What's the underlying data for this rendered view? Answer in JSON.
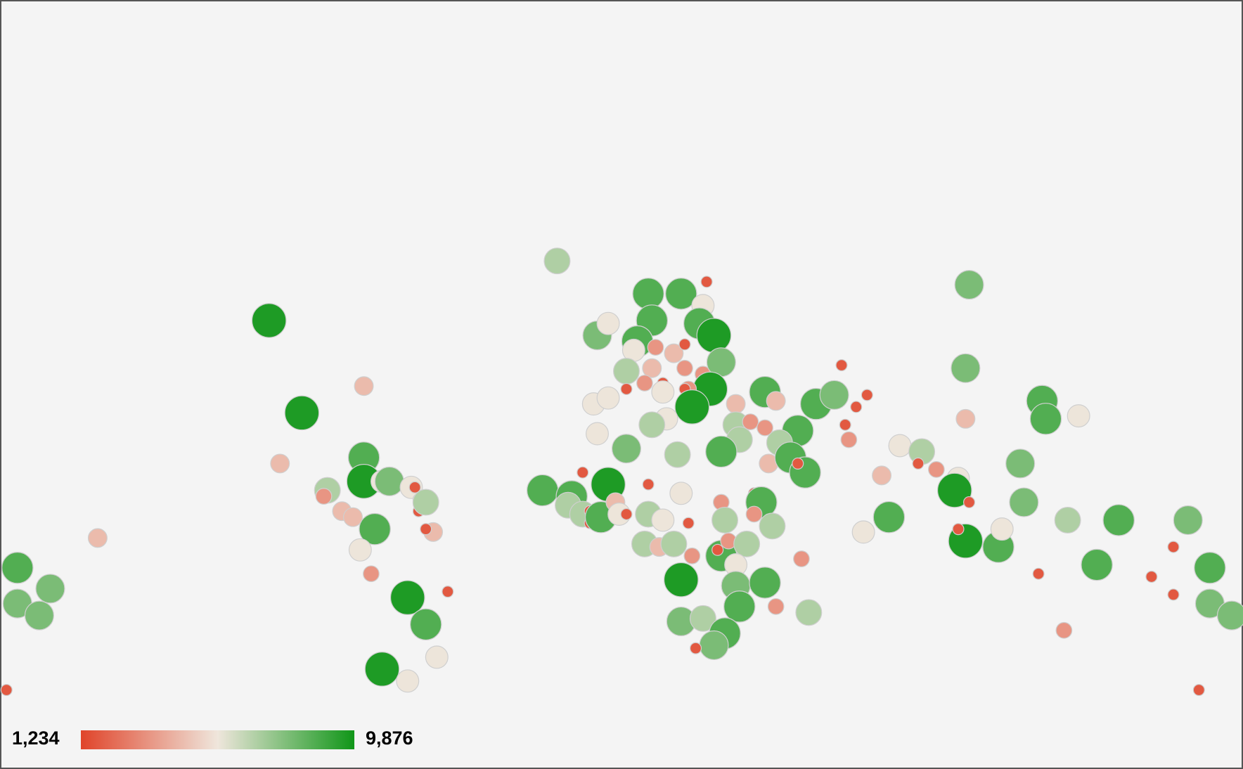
{
  "chart_data": {
    "type": "bubble-map",
    "colorAxis": {
      "colors": [
        "#e0442a",
        "#efe6dc",
        "#109618"
      ],
      "min": {
        "value": 1234,
        "label": "1,234"
      },
      "max": {
        "value": 9876,
        "label": "9,876"
      }
    },
    "lon": [
      -150,
      -150,
      -141,
      -144,
      -153,
      -128,
      -81,
      -72,
      -55,
      -78,
      -55,
      -55,
      -55,
      -50,
      -48,
      -65,
      -66,
      -61,
      -58,
      -42,
      -41,
      -40,
      -40,
      -38,
      -36,
      -38,
      -52,
      -56,
      -53,
      -32,
      -43,
      -38,
      -35,
      -50,
      -43,
      -2,
      23,
      32,
      39,
      38,
      24,
      9,
      12,
      37,
      41,
      20,
      19,
      25,
      30,
      33,
      17,
      24,
      27,
      22,
      17,
      33,
      38,
      43,
      40,
      34,
      33,
      27,
      35,
      28,
      24,
      8,
      12,
      9,
      17,
      31,
      47,
      47,
      51,
      47,
      55,
      55,
      58,
      48,
      64,
      69,
      74,
      76,
      83,
      80,
      77,
      78,
      43,
      59,
      56,
      62,
      66,
      64,
      -6,
      2,
      5,
      12,
      1,
      5,
      7,
      7,
      10,
      14,
      15,
      17,
      23,
      23,
      27,
      32,
      34,
      43,
      52,
      54,
      52,
      57,
      44,
      22,
      26,
      30,
      35,
      43,
      42,
      45,
      50,
      47,
      47,
      55,
      32,
      48,
      65,
      58,
      67,
      32,
      38,
      44,
      41,
      36,
      111,
      110,
      110,
      131,
      132,
      141,
      92,
      98,
      97,
      102,
      87,
      108,
      107,
      111,
      125,
      126,
      82,
      89,
      110,
      108,
      119,
      120,
      138,
      152,
      171,
      146,
      167,
      161,
      167,
      130,
      177,
      177,
      183,
      137,
      174
    ],
    "lat": [
      -15,
      -27,
      -22,
      -31,
      -56,
      -5,
      68,
      37,
      46,
      20,
      22,
      17,
      14,
      14,
      14,
      11,
      9,
      4,
      2,
      12,
      12,
      8,
      4,
      7,
      -3,
      -2,
      -2,
      -9,
      -17,
      -23,
      -25,
      -34,
      -45,
      -49,
      -53,
      88,
      77,
      77,
      81,
      73,
      68,
      63,
      67,
      67,
      63,
      61,
      58,
      59,
      57,
      60,
      51,
      52,
      47,
      47,
      45,
      52,
      50,
      54,
      45,
      45,
      45,
      44,
      39,
      35,
      33,
      40,
      42,
      30,
      25,
      23,
      40,
      33,
      34,
      29,
      32,
      44,
      41,
      28,
      31,
      40,
      43,
      53,
      43,
      39,
      33,
      28,
      24,
      27,
      20,
      22,
      17,
      20,
      11,
      9,
      17,
      13,
      6,
      3,
      4,
      0,
      2,
      7,
      3,
      3,
      13,
      3,
      1,
      10,
      0,
      7,
      10,
      7,
      3,
      -1,
      1,
      -7,
      -8,
      -7,
      -11,
      -11,
      -9,
      -6,
      -7,
      -14,
      -21,
      -20,
      -19,
      -28,
      -12,
      -28,
      -30,
      -33,
      -32,
      -37,
      -41,
      -42,
      80,
      52,
      35,
      41,
      35,
      36,
      26,
      24,
      20,
      18,
      16,
      15,
      11,
      7,
      20,
      7,
      -3,
      2,
      -6,
      -2,
      -8,
      -2,
      1,
      1,
      1,
      -14,
      -8,
      -18,
      -24,
      -17,
      -15,
      -27,
      -31,
      -36,
      -56
    ],
    "values": [
      8600,
      7800,
      7800,
      7800,
      1800,
      4400,
      9600,
      9600,
      4400,
      4400,
      8600,
      1800,
      9600,
      5600,
      7800,
      6800,
      3400,
      4400,
      4400,
      5600,
      1800,
      1800,
      1800,
      6800,
      4400,
      1800,
      8600,
      5600,
      3400,
      1800,
      9600,
      8600,
      5600,
      9600,
      5600,
      6800,
      8600,
      8600,
      1800,
      5600,
      8600,
      7800,
      5600,
      8600,
      9600,
      8600,
      5600,
      3400,
      4400,
      1800,
      6800,
      4400,
      1800,
      3400,
      1800,
      3400,
      3400,
      7800,
      9600,
      3400,
      1800,
      5600,
      9600,
      5600,
      6800,
      5600,
      5600,
      5600,
      7800,
      6800,
      4400,
      6800,
      3400,
      1800,
      3400,
      8600,
      4400,
      6800,
      8600,
      8600,
      7800,
      1800,
      1800,
      1800,
      1800,
      3400,
      8600,
      6800,
      4400,
      8600,
      8600,
      1800,
      8600,
      8600,
      1800,
      9600,
      6800,
      6800,
      1800,
      1800,
      8600,
      4400,
      5600,
      1800,
      1800,
      6800,
      5600,
      5600,
      1800,
      3400,
      1800,
      8600,
      3400,
      6800,
      6800,
      6800,
      4400,
      6800,
      3400,
      8600,
      1800,
      3400,
      6800,
      5600,
      7800,
      8600,
      9600,
      8600,
      3400,
      3400,
      6800,
      7800,
      6800,
      8600,
      7800,
      1800,
      7800,
      7800,
      4400,
      8600,
      8600,
      5600,
      5600,
      6800,
      1800,
      3400,
      4400,
      5600,
      9600,
      1800,
      7800,
      7800,
      5600,
      8600,
      9600,
      1800,
      8600,
      5600,
      6800,
      8600,
      7800,
      8600,
      1800,
      1800,
      1800,
      1800,
      8600,
      7800,
      7800,
      3400,
      1800
    ]
  }
}
